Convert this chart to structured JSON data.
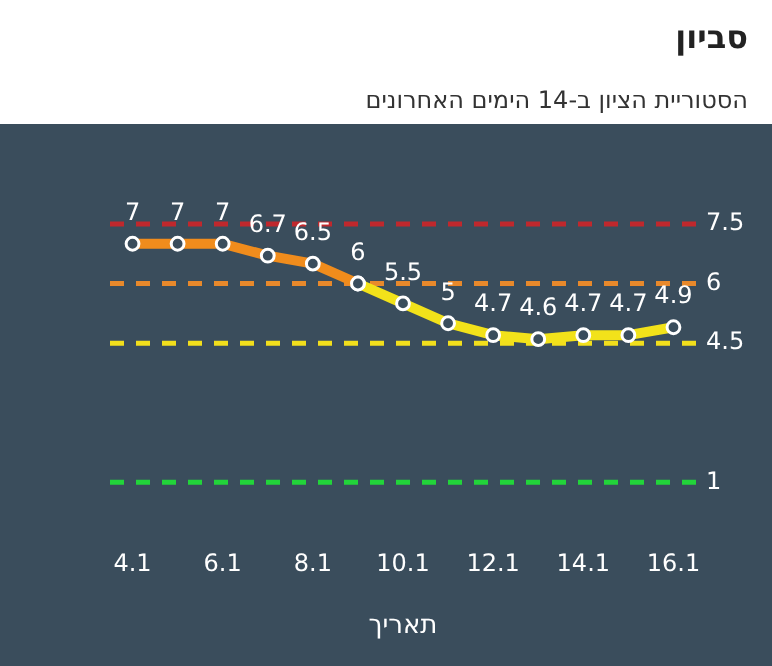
{
  "chart_data": {
    "type": "line",
    "title": "סביון",
    "subtitle": "הסטוריית הציון ב-14 הימים האחרונים",
    "xlabel": "תאריך",
    "categories": [
      "4.1",
      null,
      "6.1",
      null,
      "8.1",
      null,
      "10.1",
      null,
      "12.1",
      null,
      "14.1",
      null,
      "16.1"
    ],
    "series": [
      {
        "color": "#f08c1c",
        "values": [
          7,
          7,
          7,
          6.7,
          6.5,
          6,
          null,
          null,
          null,
          null,
          null,
          null,
          null
        ],
        "value_labels": [
          "7",
          "7",
          "7",
          "6.7",
          "6.5",
          "6",
          null,
          null,
          null,
          null,
          null,
          null,
          null
        ]
      },
      {
        "color": "#f2e21a",
        "values": [
          null,
          null,
          null,
          null,
          null,
          6,
          5.5,
          5,
          4.7,
          4.6,
          4.7,
          4.7,
          4.9
        ],
        "value_labels": [
          null,
          null,
          null,
          null,
          null,
          null,
          "5.5",
          "5",
          "4.7",
          "4.6",
          "4.7",
          "4.7",
          "4.9"
        ]
      }
    ],
    "tick_labels": "x",
    "grid": false,
    "legend": false,
    "marker": "circle",
    "line_style": "solid",
    "ref_lines": [
      {
        "axis": "y",
        "value": 7.5,
        "label": "7.5",
        "color": "#c0282d",
        "line_style": "dashed"
      },
      {
        "axis": "y",
        "value": 6,
        "label": "6",
        "color": "#e8892b",
        "line_style": "dashed"
      },
      {
        "axis": "y",
        "value": 4.5,
        "label": "4.5",
        "color": "#f2df1c",
        "line_style": "dashed"
      },
      {
        "axis": "y",
        "value": 1,
        "label": "1",
        "color": "#22d43a",
        "line_style": "dashed"
      }
    ]
  }
}
